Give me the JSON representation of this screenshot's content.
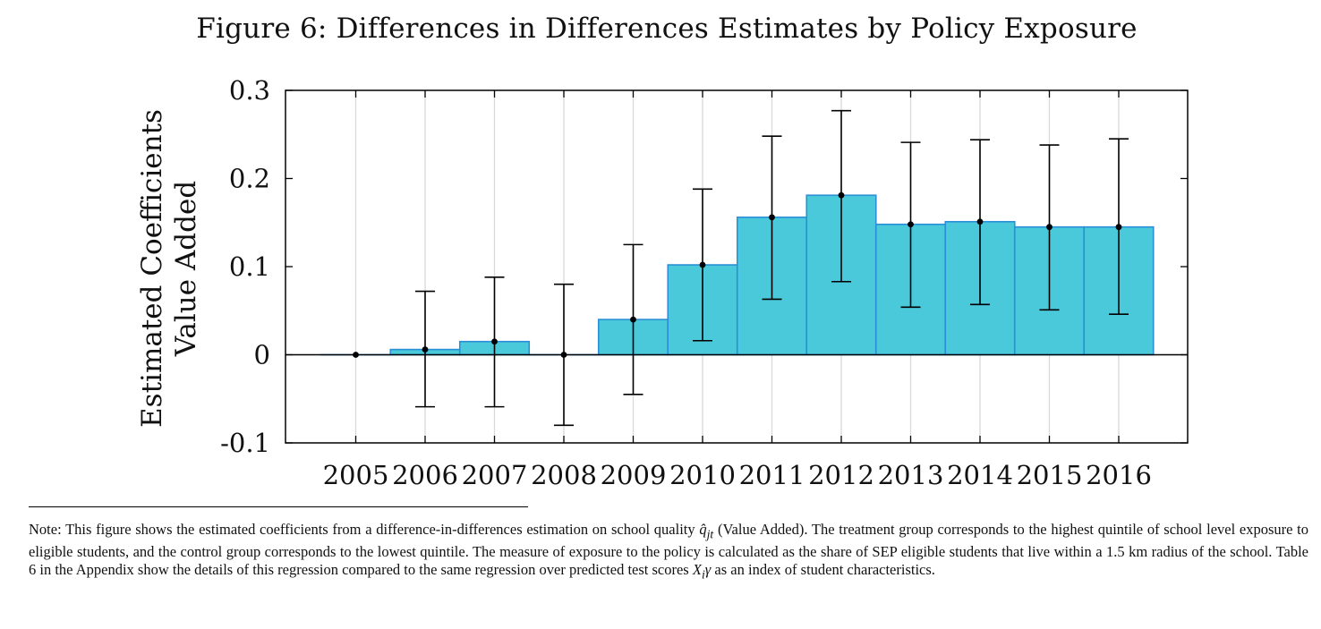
{
  "title": "Figure 6: Differences in Differences Estimates by Policy Exposure",
  "ylabel_lines": [
    "Estimated Coefficients",
    "Value Added"
  ],
  "note": {
    "intro": "Note: This figure shows the estimated coefficients from a difference-in-differences estimation on school quality",
    "symbol_q": "q̂",
    "symbol_q_sub": "jt",
    "part2": "(Value Added). The treatment group corresponds to the highest quintile of school level exposure to eligible students, and the control group corresponds to the lowest quintile. The measure of exposure to the policy is calculated as the share of SEP eligible students that live within a 1.5 km radius of the school. Table 6 in the Appendix show the details of this regression compared to the same regression over predicted test scores",
    "symbol_x": "X",
    "symbol_x_sub": "i",
    "symbol_gamma": "γ",
    "part3": "as an index of student characteristics."
  },
  "colors": {
    "bar_fill": "#4ac9db",
    "bar_edge": "#2a8fd6",
    "grid": "#d9d9d9",
    "axis": "#000000"
  },
  "chart_data": {
    "type": "bar",
    "categories": [
      "2005",
      "2006",
      "2007",
      "2008",
      "2009",
      "2010",
      "2011",
      "2012",
      "2013",
      "2014",
      "2015",
      "2016"
    ],
    "values": [
      0.0,
      0.006,
      0.015,
      0.0,
      0.04,
      0.102,
      0.156,
      0.181,
      0.148,
      0.151,
      0.145,
      0.145
    ],
    "ci_low": [
      0.0,
      -0.059,
      -0.059,
      -0.08,
      -0.045,
      0.016,
      0.063,
      0.083,
      0.054,
      0.057,
      0.051,
      0.046
    ],
    "ci_high": [
      0.0,
      0.072,
      0.088,
      0.08,
      0.125,
      0.188,
      0.248,
      0.277,
      0.241,
      0.244,
      0.238,
      0.245
    ],
    "ylim": [
      -0.1,
      0.3
    ],
    "yticks": [
      -0.1,
      0,
      0.1,
      0.2,
      0.3
    ],
    "ytick_labels": [
      "-0.1",
      "0",
      "0.1",
      "0.2",
      "0.3"
    ],
    "grid": "vertical",
    "error_bars": true
  }
}
